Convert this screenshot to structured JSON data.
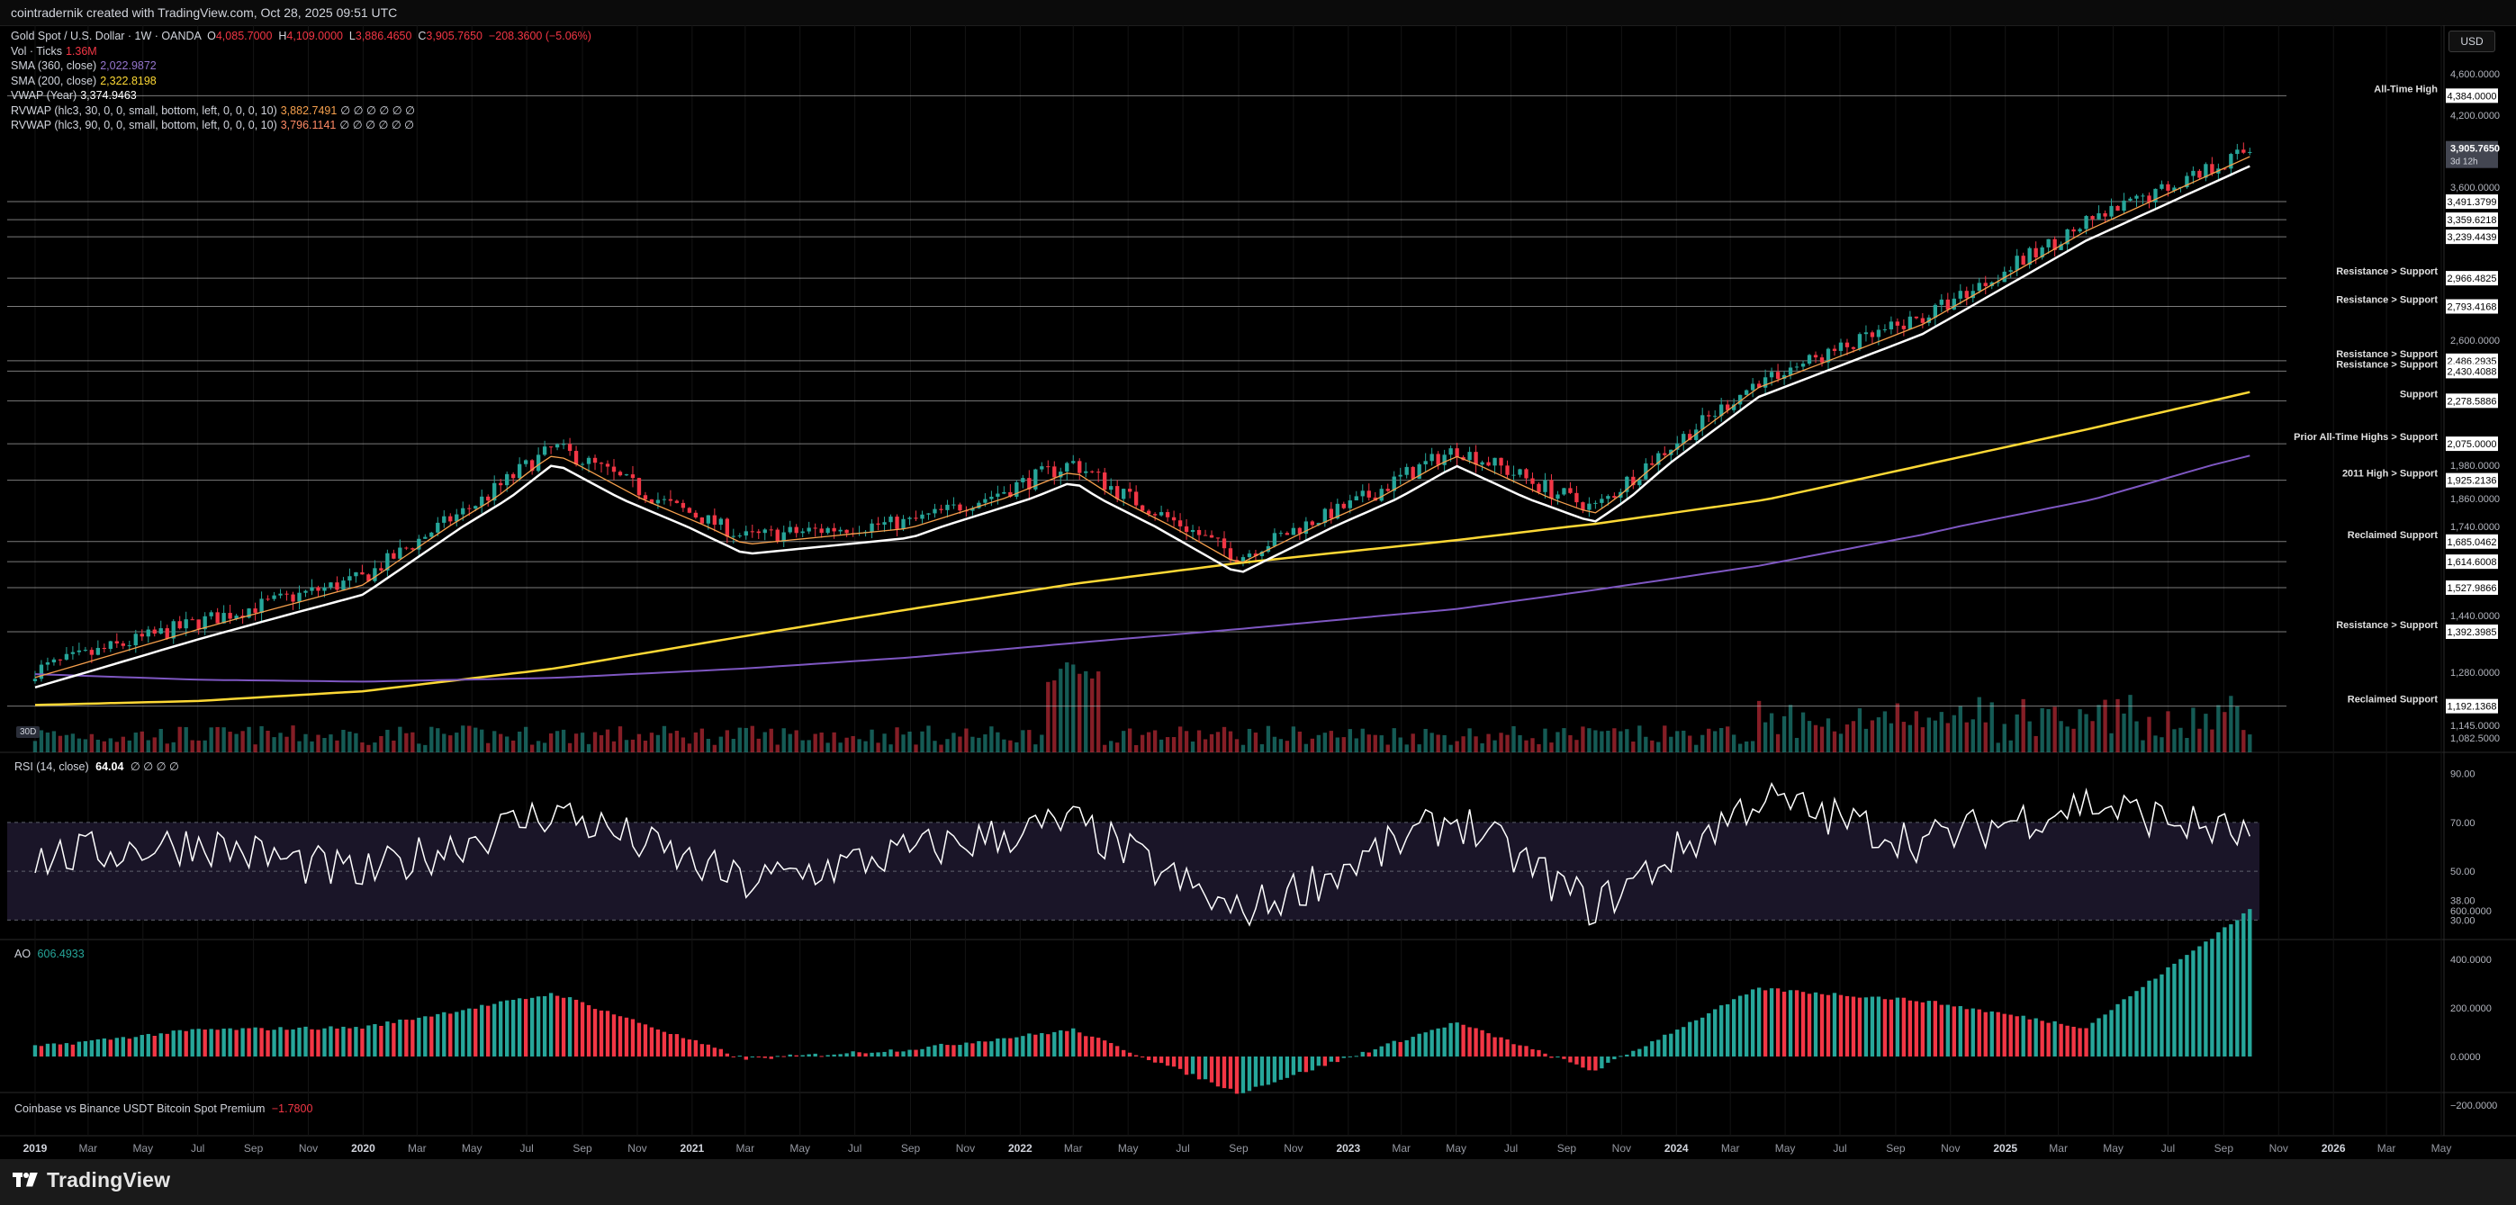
{
  "header": {
    "caption": "cointradernik created with TradingView.com, Oct 28, 2025 09:51 UTC"
  },
  "symbol": {
    "name": "Gold Spot / U.S. Dollar · 1W · OANDA",
    "open_label": "O",
    "open": "4,085.7000",
    "high_label": "H",
    "high": "4,109.0000",
    "low_label": "L",
    "low": "3,886.4650",
    "close_label": "C",
    "close": "3,905.7650",
    "change": "−208.3600 (−5.06%)"
  },
  "indicators": [
    {
      "label": "Vol · Ticks",
      "value": "1.36M",
      "color": "#f23645"
    },
    {
      "label": "SMA (360, close)",
      "value": "2,022.9872",
      "color": "#7e57c2"
    },
    {
      "label": "SMA (200, close)",
      "value": "2,322.8198",
      "color": "#fdd835"
    },
    {
      "label": "VWAP (Year)",
      "value": "3,374.9463",
      "color": "#ffffff"
    },
    {
      "label": "RVWAP (hlc3, 30, 0, 0, small, bottom, left, 0, 0, 0, 10)",
      "value": "3,882.7491",
      "color": "#f6a04d",
      "tail": "∅ ∅ ∅ ∅ ∅ ∅"
    },
    {
      "label": "RVWAP (hlc3, 90, 0, 0, small, bottom, left, 0, 0, 0, 10)",
      "value": "3,796.1141",
      "color": "#ff8a65",
      "tail": "∅ ∅ ∅ ∅ ∅ ∅"
    }
  ],
  "price_axis": {
    "currency": "USD",
    "ticks": [
      "4,600.0000",
      "4,200.0000",
      "3,600.0000",
      "2,600.0000",
      "1,980.0000",
      "1,860.0000",
      "1,740.0000",
      "1,440.0000",
      "1,280.0000",
      "1,145.0000",
      "1,082.5000"
    ],
    "current_price": "3,905.7650",
    "countdown": "3d 12h"
  },
  "levels": [
    {
      "price": 4384.0,
      "label": "4,384.0000",
      "note": "All-Time High"
    },
    {
      "price": 3491.3799,
      "label": "3,491.3799",
      "note": ""
    },
    {
      "price": 3359.6218,
      "label": "3,359.6218",
      "note": ""
    },
    {
      "price": 3239.4439,
      "label": "3,239.4439",
      "note": ""
    },
    {
      "price": 2966.4825,
      "label": "2,966.4825",
      "note": "Resistance > Support"
    },
    {
      "price": 2793.4168,
      "label": "2,793.4168",
      "note": "Resistance > Support"
    },
    {
      "price": 2486.2935,
      "label": "2,486.2935",
      "note": "Resistance > Support"
    },
    {
      "price": 2430.4088,
      "label": "2,430.4088",
      "note": "Resistance > Support"
    },
    {
      "price": 2278.5886,
      "label": "2,278.5886",
      "note": "Support"
    },
    {
      "price": 2075.0,
      "label": "2,075.0000",
      "note": "Prior All-Time Highs > Support"
    },
    {
      "price": 1925.2136,
      "label": "1,925.2136",
      "note": "2011 High > Support"
    },
    {
      "price": 1685.0462,
      "label": "1,685.0462",
      "note": "Reclaimed Support"
    },
    {
      "price": 1614.6008,
      "label": "1,614.6008",
      "note": ""
    },
    {
      "price": 1527.9866,
      "label": "1,527.9866",
      "note": ""
    },
    {
      "price": 1392.3985,
      "label": "1,392.3985",
      "note": "Resistance > Support"
    },
    {
      "price": 1192.1368,
      "label": "1,192.1368",
      "note": "Reclaimed Support"
    }
  ],
  "rsi": {
    "label": "RSI (14, close)",
    "value": "64.04",
    "tail": "∅ ∅ ∅ ∅",
    "ticks": [
      "90.00",
      "70.00",
      "50.00",
      "38.00",
      "30.00"
    ]
  },
  "ao": {
    "label": "AO",
    "value": "606.4933",
    "ticks": [
      "600.0000",
      "400.0000",
      "200.0000",
      "0.0000",
      "−200.0000"
    ]
  },
  "premium": {
    "label": "Coinbase vs Binance USDT Bitcoin Spot Premium",
    "value": "−1.7800"
  },
  "time_axis": [
    "2019",
    "Mar",
    "May",
    "Jul",
    "Sep",
    "Nov",
    "2020",
    "Mar",
    "May",
    "Jul",
    "Sep",
    "Nov",
    "2021",
    "Mar",
    "May",
    "Jul",
    "Sep",
    "Nov",
    "2022",
    "Mar",
    "May",
    "Jul",
    "Sep",
    "Nov",
    "2023",
    "Mar",
    "May",
    "Jul",
    "Sep",
    "Nov",
    "2024",
    "Mar",
    "May",
    "Jul",
    "Sep",
    "Nov",
    "2025",
    "Mar",
    "May",
    "Jul",
    "Sep",
    "Nov",
    "2026",
    "Mar",
    "May"
  ],
  "scale_badge": "30D",
  "brand": "TradingView",
  "colors": {
    "up": "#26a69a",
    "down": "#f23645",
    "sma360": "#7e57c2",
    "sma200": "#fdd835",
    "vwap": "#ffffff",
    "rvwap30": "#f6a04d",
    "rvwap90": "#ff8a65",
    "rsi_band": "#1a1528"
  },
  "chart_data": {
    "type": "line",
    "title": "Gold Spot / U.S. Dollar · 1W · OANDA",
    "x": [
      "2019-01",
      "2019-07",
      "2020-01",
      "2020-08",
      "2021-03",
      "2021-09",
      "2022-03",
      "2022-09",
      "2023-05",
      "2023-10",
      "2024-04",
      "2024-10",
      "2025-04",
      "2025-10"
    ],
    "series": [
      {
        "name": "Gold Spot / U.S. Dollar",
        "values": [
          1285,
          1420,
          1560,
          2060,
          1700,
          1760,
          1990,
          1630,
          2050,
          1820,
          2380,
          2730,
          3330,
          3906
        ]
      },
      {
        "name": "SMA (200, close)",
        "values": [
          1195,
          1205,
          1230,
          1290,
          1380,
          1460,
          1540,
          1610,
          1690,
          1750,
          1850,
          1980,
          2140,
          2323
        ]
      },
      {
        "name": "SMA (360, close)",
        "values": [
          1275,
          1260,
          1255,
          1265,
          1290,
          1320,
          1360,
          1400,
          1460,
          1520,
          1600,
          1710,
          1850,
          2023
        ]
      }
    ],
    "rsi_values": [
      55,
      62,
      48,
      75,
      45,
      58,
      70,
      32,
      72,
      35,
      80,
      62,
      78,
      64
    ],
    "ao_values": [
      40,
      110,
      120,
      260,
      -10,
      30,
      110,
      -150,
      140,
      -60,
      280,
      230,
      120,
      606
    ],
    "ylim": [
      1082.5,
      4600
    ]
  }
}
